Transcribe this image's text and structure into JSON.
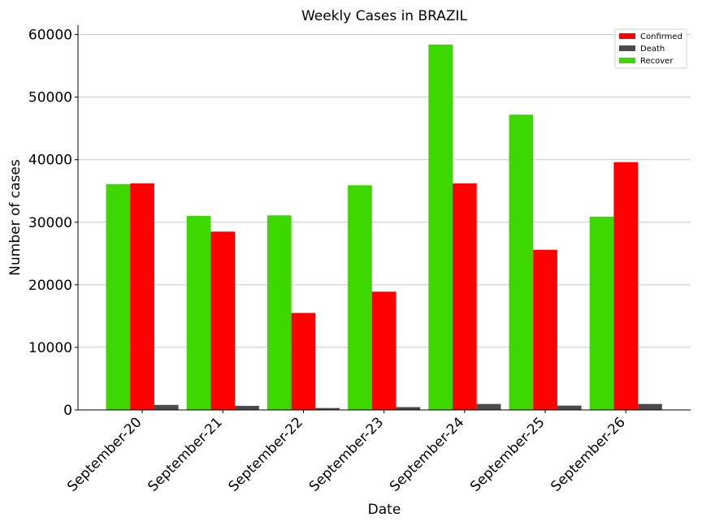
{
  "chart_data": {
    "type": "bar",
    "title": "Weekly Cases in BRAZIL",
    "xlabel": "Date",
    "ylabel": "Number of cases",
    "categories": [
      "September-20",
      "September-21",
      "September-22",
      "September-23",
      "September-24",
      "September-25",
      "September-26"
    ],
    "series": [
      {
        "name": "Recover",
        "color": "#3dd800",
        "values": [
          36100,
          31000,
          31100,
          35900,
          58400,
          47200,
          30900
        ]
      },
      {
        "name": "Confirmed",
        "color": "#ff0000",
        "values": [
          36200,
          28500,
          15500,
          18900,
          36200,
          25600,
          39600
        ]
      },
      {
        "name": "Death",
        "color": "#4b4b4b",
        "values": [
          800,
          650,
          300,
          450,
          950,
          700,
          950
        ]
      }
    ],
    "legend_order": [
      "Confirmed",
      "Death",
      "Recover"
    ],
    "yticks": [
      0,
      10000,
      20000,
      30000,
      40000,
      50000,
      60000
    ],
    "ylim": [
      0,
      61500
    ],
    "grid": "horizontal",
    "legend_position": "top-right"
  }
}
